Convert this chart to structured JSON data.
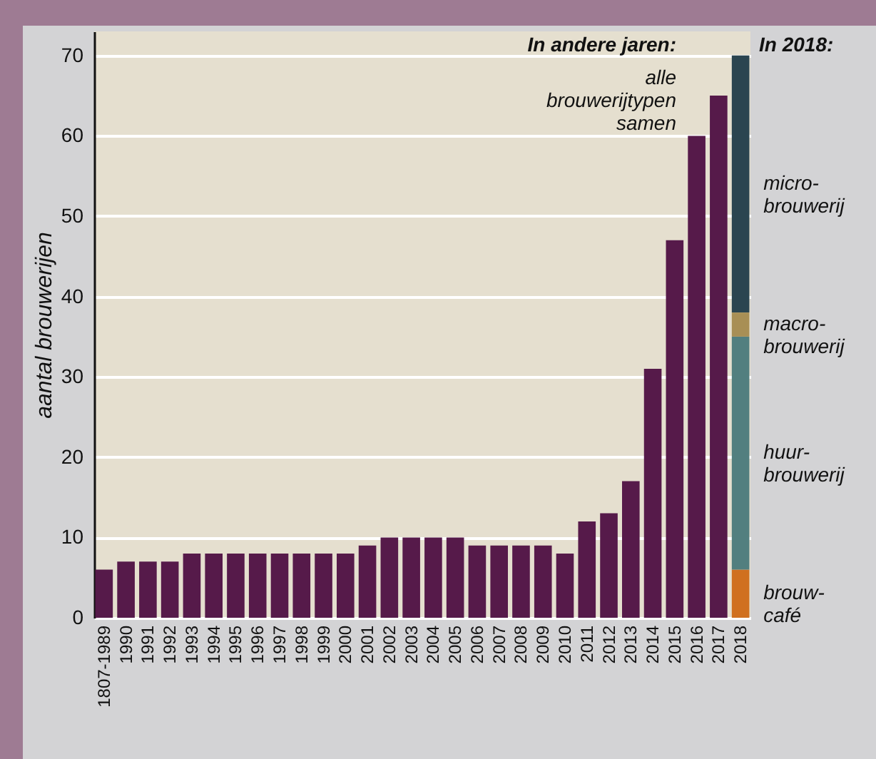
{
  "chart_data": {
    "type": "bar",
    "stacked": true,
    "ylabel": "aantal brouwerijen",
    "categories": [
      "1807-1989",
      "1990",
      "1991",
      "1992",
      "1993",
      "1994",
      "1995",
      "1996",
      "1997",
      "1998",
      "1999",
      "2000",
      "2001",
      "2002",
      "2003",
      "2004",
      "2005",
      "2006",
      "2007",
      "2008",
      "2009",
      "2010",
      "2011",
      "2012",
      "2013",
      "2014",
      "2015",
      "2016",
      "2017",
      "2018"
    ],
    "series": [
      {
        "name": "alle brouwerijtypen samen",
        "color": "#561a4a",
        "values": [
          6,
          7,
          7,
          7,
          8,
          8,
          8,
          8,
          8,
          8,
          8,
          8,
          9,
          10,
          10,
          10,
          10,
          9,
          9,
          9,
          9,
          8,
          12,
          13,
          17,
          31,
          47,
          60,
          65,
          null
        ]
      },
      {
        "name": "brouw-café",
        "color": "#d0701f",
        "values": [
          null,
          null,
          null,
          null,
          null,
          null,
          null,
          null,
          null,
          null,
          null,
          null,
          null,
          null,
          null,
          null,
          null,
          null,
          null,
          null,
          null,
          null,
          null,
          null,
          null,
          null,
          null,
          null,
          null,
          6
        ]
      },
      {
        "name": "huur-brouwerij",
        "color": "#527f7f",
        "values": [
          null,
          null,
          null,
          null,
          null,
          null,
          null,
          null,
          null,
          null,
          null,
          null,
          null,
          null,
          null,
          null,
          null,
          null,
          null,
          null,
          null,
          null,
          null,
          null,
          null,
          null,
          null,
          null,
          null,
          29
        ]
      },
      {
        "name": "macro-brouwerij",
        "color": "#a88f55",
        "values": [
          null,
          null,
          null,
          null,
          null,
          null,
          null,
          null,
          null,
          null,
          null,
          null,
          null,
          null,
          null,
          null,
          null,
          null,
          null,
          null,
          null,
          null,
          null,
          null,
          null,
          null,
          null,
          null,
          null,
          3
        ]
      },
      {
        "name": "micro-brouwerij",
        "color": "#2b4550",
        "values": [
          null,
          null,
          null,
          null,
          null,
          null,
          null,
          null,
          null,
          null,
          null,
          null,
          null,
          null,
          null,
          null,
          null,
          null,
          null,
          null,
          null,
          null,
          null,
          null,
          null,
          null,
          null,
          null,
          null,
          32
        ]
      }
    ],
    "ylim": [
      0,
      73
    ],
    "yticks": [
      0,
      10,
      20,
      30,
      40,
      50,
      60,
      70
    ],
    "grid": "y",
    "annotations": [
      "In andere jaren:",
      "In 2018:"
    ]
  }
}
